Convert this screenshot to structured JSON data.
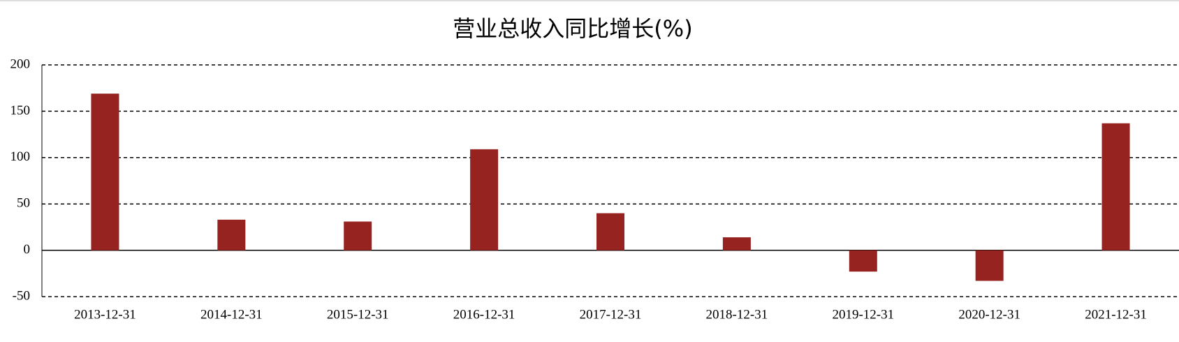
{
  "chart_data": {
    "type": "bar",
    "title": "营业总收入同比增长(%)",
    "categories": [
      "2013-12-31",
      "2014-12-31",
      "2015-12-31",
      "2016-12-31",
      "2017-12-31",
      "2018-12-31",
      "2019-12-31",
      "2020-12-31",
      "2021-12-31"
    ],
    "values": [
      169,
      33,
      31,
      109,
      40,
      14,
      -23,
      -33,
      137
    ],
    "color": "#96231f",
    "ylim": [
      -50,
      200
    ],
    "yticks": [
      -50,
      0,
      50,
      100,
      150,
      200
    ],
    "grid": true
  }
}
